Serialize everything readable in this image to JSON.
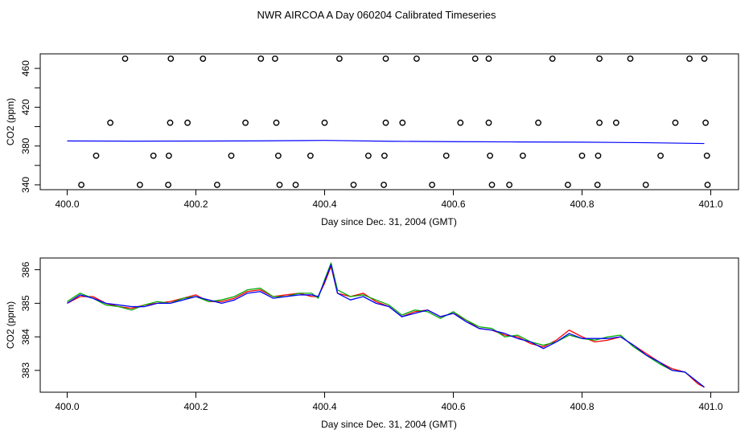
{
  "title": "NWR AIRCOA A  Day 060204  Calibrated Timeseries",
  "colors": {
    "red": "#ff0000",
    "green": "#00aa00",
    "blue": "#0000ff",
    "axis": "#000000"
  },
  "chart_data": [
    {
      "type": "scatter",
      "xlabel": "Day since Dec. 31, 2004 (GMT)",
      "ylabel": "CO2 (ppm)",
      "xlim": [
        400.0,
        401.0
      ],
      "ylim": [
        335,
        475
      ],
      "x_ticks": [
        400.0,
        400.2,
        400.4,
        400.6,
        400.8,
        401.0
      ],
      "x_tick_labels": [
        "400.0",
        "400.2",
        "400.4",
        "400.6",
        "400.8",
        "401.0"
      ],
      "y_ticks": [
        340,
        360,
        380,
        400,
        420,
        440,
        460
      ],
      "y_tick_labels": [
        "340",
        "",
        "380",
        "",
        "420",
        "",
        "460"
      ],
      "grid": false,
      "series": [
        {
          "marker": "open-circle",
          "points": [
            [
              400.09,
              470
            ],
            [
              400.161,
              470
            ],
            [
              400.211,
              470
            ],
            [
              400.301,
              470
            ],
            [
              400.323,
              470
            ],
            [
              400.423,
              470
            ],
            [
              400.495,
              470
            ],
            [
              400.543,
              470
            ],
            [
              400.634,
              470
            ],
            [
              400.655,
              470
            ],
            [
              400.754,
              470
            ],
            [
              400.827,
              470
            ],
            [
              400.875,
              470
            ],
            [
              400.967,
              470
            ],
            [
              400.99,
              470
            ],
            [
              400.067,
              404
            ],
            [
              400.16,
              404
            ],
            [
              400.187,
              404
            ],
            [
              400.277,
              404
            ],
            [
              400.325,
              404
            ],
            [
              400.4,
              404
            ],
            [
              400.495,
              404
            ],
            [
              400.521,
              404
            ],
            [
              400.611,
              404
            ],
            [
              400.655,
              404
            ],
            [
              400.732,
              404
            ],
            [
              400.827,
              404
            ],
            [
              400.853,
              404
            ],
            [
              400.945,
              404
            ],
            [
              400.992,
              404
            ],
            [
              400.045,
              370
            ],
            [
              400.134,
              370
            ],
            [
              400.158,
              370
            ],
            [
              400.255,
              370
            ],
            [
              400.328,
              370
            ],
            [
              400.378,
              370
            ],
            [
              400.468,
              370
            ],
            [
              400.493,
              370
            ],
            [
              400.589,
              370
            ],
            [
              400.657,
              370
            ],
            [
              400.708,
              370
            ],
            [
              400.8,
              370
            ],
            [
              400.825,
              370
            ],
            [
              400.922,
              370
            ],
            [
              400.994,
              370
            ],
            [
              400.022,
              340
            ],
            [
              400.113,
              340
            ],
            [
              400.157,
              340
            ],
            [
              400.233,
              340
            ],
            [
              400.33,
              340
            ],
            [
              400.355,
              340
            ],
            [
              400.445,
              340
            ],
            [
              400.492,
              340
            ],
            [
              400.567,
              340
            ],
            [
              400.66,
              340
            ],
            [
              400.687,
              340
            ],
            [
              400.778,
              340
            ],
            [
              400.824,
              340
            ],
            [
              400.899,
              340
            ],
            [
              400.995,
              340
            ]
          ]
        },
        {
          "type": "line",
          "color": "#0000ff",
          "points": [
            [
              400.0,
              385.2
            ],
            [
              400.1,
              385.0
            ],
            [
              400.2,
              385.1
            ],
            [
              400.3,
              385.3
            ],
            [
              400.4,
              385.8
            ],
            [
              400.5,
              384.9
            ],
            [
              400.6,
              384.5
            ],
            [
              400.7,
              384.2
            ],
            [
              400.8,
              384.0
            ],
            [
              400.9,
              383.4
            ],
            [
              400.99,
              382.6
            ]
          ]
        }
      ]
    },
    {
      "type": "line",
      "xlabel": "Day since Dec. 31, 2004 (GMT)",
      "ylabel": "CO2 (ppm)",
      "xlim": [
        400.0,
        401.0
      ],
      "ylim": [
        382.35,
        386.35
      ],
      "x_ticks": [
        400.0,
        400.2,
        400.4,
        400.6,
        400.8,
        401.0
      ],
      "x_tick_labels": [
        "400.0",
        "400.2",
        "400.4",
        "400.6",
        "400.8",
        "401.0"
      ],
      "y_ticks": [
        383,
        384,
        385,
        386
      ],
      "y_tick_labels": [
        "383",
        "384",
        "385",
        "386"
      ],
      "grid": false,
      "x": [
        400.0,
        400.02,
        400.04,
        400.06,
        400.08,
        400.1,
        400.12,
        400.14,
        400.16,
        400.18,
        400.2,
        400.22,
        400.24,
        400.26,
        400.28,
        400.3,
        400.32,
        400.34,
        400.36,
        400.38,
        400.39,
        400.4,
        400.41,
        400.42,
        400.44,
        400.46,
        400.48,
        400.5,
        400.52,
        400.54,
        400.56,
        400.58,
        400.6,
        400.62,
        400.64,
        400.66,
        400.68,
        400.7,
        400.72,
        400.74,
        400.76,
        400.78,
        400.8,
        400.82,
        400.84,
        400.86,
        400.88,
        400.9,
        400.92,
        400.94,
        400.96,
        400.98,
        400.99
      ],
      "series": [
        {
          "color": "#ff0000",
          "values": [
            385.0,
            385.2,
            385.2,
            385.0,
            384.9,
            384.85,
            384.95,
            385.0,
            385.05,
            385.15,
            385.25,
            385.05,
            385.05,
            385.15,
            385.35,
            385.4,
            385.2,
            385.25,
            385.3,
            385.2,
            385.2,
            385.6,
            386.1,
            385.3,
            385.2,
            385.3,
            385.05,
            384.9,
            384.6,
            384.75,
            384.8,
            384.6,
            384.7,
            384.5,
            384.25,
            384.2,
            384.05,
            384.0,
            383.8,
            383.7,
            383.9,
            384.2,
            384.0,
            383.85,
            383.9,
            384.0,
            383.75,
            383.5,
            383.25,
            383.05,
            382.95,
            382.6,
            382.5
          ]
        },
        {
          "color": "#00aa00",
          "values": [
            385.05,
            385.3,
            385.15,
            384.95,
            384.9,
            384.8,
            384.95,
            385.05,
            385.0,
            385.15,
            385.2,
            385.05,
            385.1,
            385.2,
            385.4,
            385.45,
            385.2,
            385.2,
            385.3,
            385.3,
            385.15,
            385.7,
            386.2,
            385.4,
            385.2,
            385.25,
            385.1,
            384.95,
            384.65,
            384.8,
            384.75,
            384.55,
            384.75,
            384.5,
            384.3,
            384.25,
            384.0,
            384.05,
            383.85,
            383.75,
            383.85,
            384.05,
            383.95,
            383.9,
            384.0,
            384.05,
            383.7,
            383.45,
            383.2,
            383.0,
            382.95,
            382.65,
            382.5
          ]
        },
        {
          "color": "#0000ff",
          "values": [
            385.0,
            385.25,
            385.15,
            385.0,
            384.95,
            384.9,
            384.9,
            385.0,
            385.0,
            385.1,
            385.2,
            385.1,
            385.0,
            385.1,
            385.3,
            385.35,
            385.15,
            385.2,
            385.25,
            385.25,
            385.2,
            385.65,
            386.15,
            385.3,
            385.1,
            385.2,
            385.0,
            384.9,
            384.6,
            384.7,
            384.8,
            384.6,
            384.7,
            384.45,
            384.25,
            384.2,
            384.1,
            383.95,
            383.85,
            383.65,
            383.85,
            384.1,
            383.95,
            383.95,
            383.95,
            384.0,
            383.75,
            383.45,
            383.25,
            383.0,
            382.95,
            382.65,
            382.5
          ]
        }
      ]
    }
  ]
}
